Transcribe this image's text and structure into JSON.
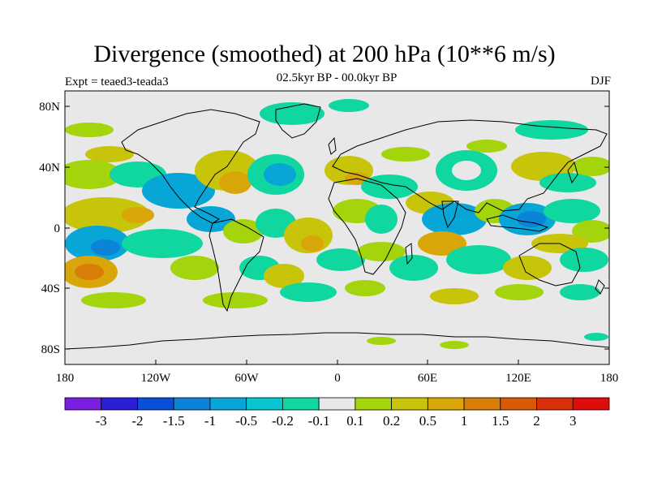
{
  "title": "Divergence (smoothed) at 200 hPa (10**6 m/s)",
  "subtitle_left": "Expt = teaed3-teada3",
  "subtitle_center": "02.5kyr BP - 00.0kyr BP",
  "subtitle_right": "DJF",
  "x_ticks": [
    "180",
    "120W",
    "60W",
    "0",
    "60E",
    "120E",
    "180"
  ],
  "y_ticks": [
    "80N",
    "40N",
    "0",
    "40S",
    "80S"
  ],
  "colorbar": {
    "labels": [
      "-3",
      "-2",
      "-1.5",
      "-1",
      "-0.5",
      "-0.2",
      "-0.1",
      "0.1",
      "0.2",
      "0.5",
      "1",
      "1.5",
      "2",
      "3"
    ],
    "colors": [
      "#7a1fe0",
      "#2a1fd6",
      "#0a4fd8",
      "#0b84d8",
      "#07a6d6",
      "#08c6d0",
      "#10d6a0",
      "#e8e8e8",
      "#a4d40c",
      "#c8c40a",
      "#d8a608",
      "#d87e08",
      "#d85a08",
      "#d8300a",
      "#e00c0c"
    ]
  },
  "colors": {
    "land_outline": "#000000",
    "background_field": "#e8e8e8"
  }
}
